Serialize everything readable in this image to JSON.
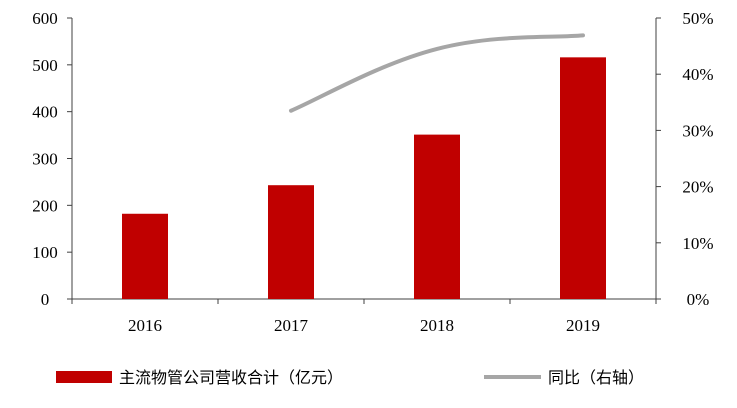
{
  "chart_data": {
    "type": "bar",
    "categories": [
      "2016",
      "2017",
      "2018",
      "2019"
    ],
    "series": [
      {
        "name": "主流物管公司营收合计（亿元）",
        "type": "bar",
        "axis": "left",
        "color": "#c00000",
        "values": [
          182,
          243,
          351,
          516
        ]
      },
      {
        "name": "同比（右轴）",
        "type": "line",
        "axis": "right",
        "color": "#a6a6a6",
        "values": [
          null,
          33.5,
          44.5,
          46.9
        ]
      }
    ],
    "left_axis": {
      "ylim": [
        0,
        600
      ],
      "ticks": [
        "0",
        "100",
        "200",
        "300",
        "400",
        "500",
        "600"
      ]
    },
    "right_axis": {
      "ylim": [
        0,
        50
      ],
      "ticks": [
        "0%",
        "10%",
        "20%",
        "30%",
        "40%",
        "50%"
      ]
    },
    "legend_position": "bottom",
    "grid": false
  }
}
